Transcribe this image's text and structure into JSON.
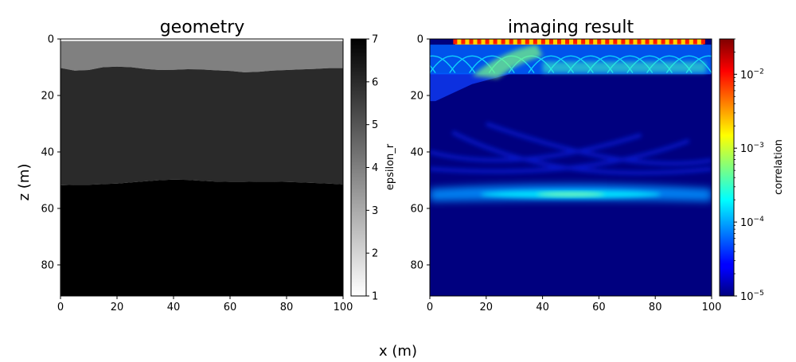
{
  "figure": {
    "shared_xlabel": "x (m)",
    "shared_ylabel": "z (m)"
  },
  "chart_data": [
    {
      "type": "heatmap",
      "title": "geometry",
      "xlabel": "x (m)",
      "ylabel": "z (m)",
      "xlim": [
        0,
        100
      ],
      "ylim": [
        91,
        0
      ],
      "x_ticks": [
        0,
        20,
        40,
        60,
        80,
        100
      ],
      "y_ticks": [
        0,
        20,
        40,
        60,
        80
      ],
      "grid": false,
      "colormap": "gray_r",
      "colorbar": {
        "label": "epsilon_r",
        "scale": "linear",
        "range": [
          1,
          7
        ],
        "ticks": [
          1,
          2,
          3,
          4,
          5,
          6,
          7
        ]
      },
      "layers": [
        {
          "z_top_m": 0.0,
          "z_bottom_m": 0.7,
          "epsilon_r": 1,
          "color": "#ffffff"
        },
        {
          "z_top_m": 0.7,
          "boundary_below": "interface_1",
          "epsilon_r": 4,
          "color": "#808080"
        },
        {
          "boundary_above": "interface_1",
          "boundary_below": "interface_2",
          "epsilon_r": 6,
          "color": "#2a2a2a"
        },
        {
          "boundary_above": "interface_2",
          "z_bottom_m": 91,
          "epsilon_r": 7,
          "color": "#000000"
        }
      ],
      "interface_1": {
        "x": [
          0,
          5,
          10,
          15,
          20,
          25,
          30,
          35,
          40,
          45,
          50,
          55,
          60,
          65,
          70,
          75,
          80,
          85,
          90,
          95,
          100
        ],
        "z": [
          10.3,
          11.2,
          11.0,
          10.0,
          9.8,
          10.0,
          10.6,
          11.0,
          10.9,
          10.7,
          10.8,
          11.1,
          11.3,
          11.8,
          11.6,
          11.2,
          11.0,
          10.8,
          10.6,
          10.3,
          10.3
        ]
      },
      "interface_2": {
        "x": [
          0,
          5,
          10,
          15,
          20,
          25,
          30,
          35,
          40,
          45,
          50,
          55,
          60,
          65,
          70,
          75,
          80,
          85,
          90,
          95,
          100
        ],
        "z": [
          51.8,
          51.6,
          51.6,
          51.4,
          51.2,
          50.8,
          50.4,
          50.0,
          49.8,
          49.9,
          50.2,
          50.5,
          50.6,
          50.6,
          50.5,
          50.5,
          50.6,
          50.8,
          51.0,
          51.2,
          51.5
        ]
      }
    },
    {
      "type": "heatmap",
      "title": "imaging result",
      "xlabel": "x (m)",
      "ylabel": "",
      "xlim": [
        0,
        100
      ],
      "ylim": [
        91,
        0
      ],
      "x_ticks": [
        0,
        20,
        40,
        60,
        80,
        100
      ],
      "y_ticks": [
        0,
        20,
        40,
        60,
        80
      ],
      "grid": false,
      "colormap": "jet",
      "colorbar": {
        "label": "correlation",
        "scale": "log",
        "range": [
          1e-05,
          0.03
        ],
        "ticks": [
          1e-05,
          0.0001,
          0.001,
          0.01
        ],
        "tick_labels": [
          {
            "base": "10",
            "exp": "−5"
          },
          {
            "base": "10",
            "exp": "−4"
          },
          {
            "base": "10",
            "exp": "−3"
          },
          {
            "base": "10",
            "exp": "−2"
          }
        ]
      },
      "background_value": 1e-05,
      "features": {
        "antenna_row": {
          "z_m": 1.0,
          "x_start": 9,
          "x_end": 97,
          "count": 32,
          "peak_value": 0.03
        },
        "shallow_multiples": {
          "z_range_m": [
            0,
            13
          ],
          "x_range_m": [
            0,
            100
          ],
          "value_range": [
            0.0001,
            0.001
          ]
        },
        "left_diffraction_tail": {
          "x_range_m": [
            0,
            30
          ],
          "z_range_m": [
            12,
            22
          ],
          "value": 0.0001
        },
        "reflector_image": {
          "z_m": 55,
          "x_range_m": [
            0,
            100
          ],
          "peak_x_m": 50,
          "peak_value": 0.001
        },
        "crossing_migration_arcs": {
          "z_range_m": [
            25,
            56
          ],
          "value": 2e-05
        }
      }
    }
  ]
}
